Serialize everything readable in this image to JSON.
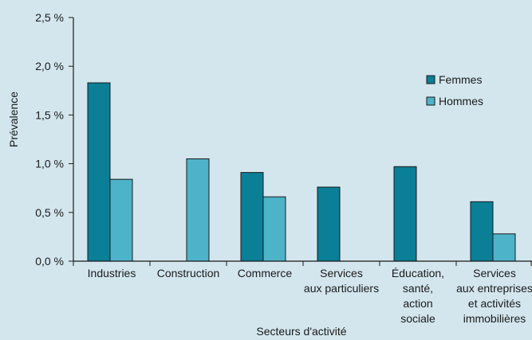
{
  "chart_data": {
    "type": "bar",
    "title": "",
    "xlabel": "Secteurs d'activité",
    "ylabel": "Prévalence",
    "ylim": [
      0,
      2.5
    ],
    "yticks": [
      {
        "value": 0.0,
        "label": "0,0 %"
      },
      {
        "value": 0.5,
        "label": "0,5 %"
      },
      {
        "value": 1.0,
        "label": "1,0 %"
      },
      {
        "value": 1.5,
        "label": "1,5 %"
      },
      {
        "value": 2.0,
        "label": "2,0 %"
      },
      {
        "value": 2.5,
        "label": "2,5 %"
      }
    ],
    "categories": [
      [
        "Industries"
      ],
      [
        "Construction"
      ],
      [
        "Commerce"
      ],
      [
        "Services",
        "aux particuliers"
      ],
      [
        "Éducation,",
        "santé,",
        "action",
        "sociale"
      ],
      [
        "Services",
        "aux entreprises",
        "et activités",
        "immobilières"
      ]
    ],
    "series": [
      {
        "name": "Femmes",
        "color": "#0a7f96",
        "values": [
          1.83,
          null,
          0.91,
          0.76,
          0.97,
          0.61
        ]
      },
      {
        "name": "Hommes",
        "color": "#4db3c8",
        "values": [
          0.84,
          1.05,
          0.66,
          null,
          null,
          0.28
        ]
      }
    ],
    "legend_position": "top-right",
    "grid": false
  }
}
